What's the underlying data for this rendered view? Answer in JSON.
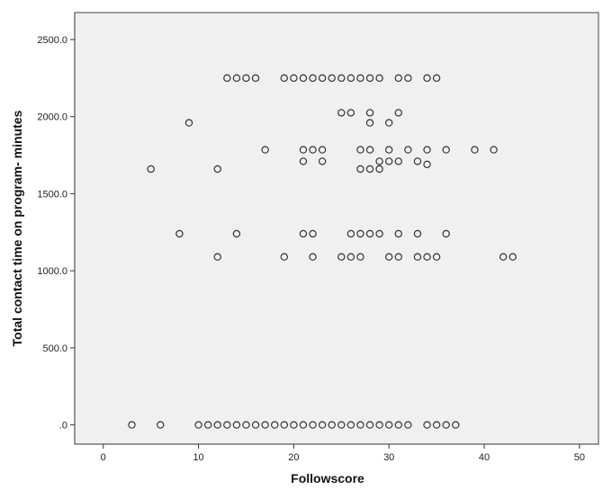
{
  "chart_data": {
    "type": "scatter",
    "title": "",
    "xlabel": "Followscore",
    "ylabel": "Total contact time on program- minutes",
    "xlim": [
      -3,
      52
    ],
    "ylim": [
      -125,
      2675
    ],
    "x_ticks": [
      0,
      10,
      20,
      30,
      40,
      50
    ],
    "x_tick_labels": [
      "0",
      "10",
      "20",
      "30",
      "40",
      "50"
    ],
    "y_ticks": [
      0,
      500,
      1000,
      1500,
      2000,
      2500
    ],
    "y_tick_labels": [
      ".0",
      "500.0",
      "1000.0",
      "1500.0",
      "2000.0",
      "2500.0"
    ],
    "grid": false,
    "plot_background": "#f0f0f0",
    "marker": "hollow-circle",
    "marker_color": "#333333",
    "series": [
      {
        "points": [
          [
            3,
            0
          ],
          [
            6,
            0
          ],
          [
            10,
            0
          ],
          [
            11,
            0
          ],
          [
            12,
            0
          ],
          [
            13,
            0
          ],
          [
            14,
            0
          ],
          [
            15,
            0
          ],
          [
            16,
            0
          ],
          [
            17,
            0
          ],
          [
            18,
            0
          ],
          [
            19,
            0
          ],
          [
            20,
            0
          ],
          [
            21,
            0
          ],
          [
            22,
            0
          ],
          [
            23,
            0
          ],
          [
            24,
            0
          ],
          [
            25,
            0
          ],
          [
            26,
            0
          ],
          [
            27,
            0
          ],
          [
            28,
            0
          ],
          [
            29,
            0
          ],
          [
            30,
            0
          ],
          [
            31,
            0
          ],
          [
            32,
            0
          ],
          [
            34,
            0
          ],
          [
            35,
            0
          ],
          [
            36,
            0
          ],
          [
            37,
            0
          ],
          [
            12,
            1090
          ],
          [
            19,
            1090
          ],
          [
            22,
            1090
          ],
          [
            25,
            1090
          ],
          [
            26,
            1090
          ],
          [
            27,
            1090
          ],
          [
            30,
            1090
          ],
          [
            31,
            1090
          ],
          [
            33,
            1090
          ],
          [
            34,
            1090
          ],
          [
            35,
            1090
          ],
          [
            42,
            1090
          ],
          [
            43,
            1090
          ],
          [
            8,
            1240
          ],
          [
            14,
            1240
          ],
          [
            21,
            1240
          ],
          [
            22,
            1240
          ],
          [
            26,
            1240
          ],
          [
            27,
            1240
          ],
          [
            28,
            1240
          ],
          [
            29,
            1240
          ],
          [
            31,
            1240
          ],
          [
            33,
            1240
          ],
          [
            36,
            1240
          ],
          [
            5,
            1660
          ],
          [
            12,
            1660
          ],
          [
            27,
            1660
          ],
          [
            28,
            1660
          ],
          [
            29,
            1660
          ],
          [
            34,
            1690
          ],
          [
            21,
            1710
          ],
          [
            23,
            1710
          ],
          [
            29,
            1710
          ],
          [
            30,
            1710
          ],
          [
            31,
            1710
          ],
          [
            33,
            1710
          ],
          [
            17,
            1785
          ],
          [
            21,
            1785
          ],
          [
            22,
            1785
          ],
          [
            23,
            1785
          ],
          [
            27,
            1785
          ],
          [
            28,
            1785
          ],
          [
            30,
            1785
          ],
          [
            32,
            1785
          ],
          [
            34,
            1785
          ],
          [
            36,
            1785
          ],
          [
            39,
            1785
          ],
          [
            41,
            1785
          ],
          [
            9,
            1960
          ],
          [
            28,
            1960
          ],
          [
            30,
            1960
          ],
          [
            25,
            2025
          ],
          [
            26,
            2025
          ],
          [
            28,
            2025
          ],
          [
            31,
            2025
          ],
          [
            13,
            2250
          ],
          [
            14,
            2250
          ],
          [
            15,
            2250
          ],
          [
            16,
            2250
          ],
          [
            19,
            2250
          ],
          [
            20,
            2250
          ],
          [
            21,
            2250
          ],
          [
            22,
            2250
          ],
          [
            23,
            2250
          ],
          [
            24,
            2250
          ],
          [
            25,
            2250
          ],
          [
            26,
            2250
          ],
          [
            27,
            2250
          ],
          [
            28,
            2250
          ],
          [
            29,
            2250
          ],
          [
            31,
            2250
          ],
          [
            32,
            2250
          ],
          [
            34,
            2250
          ],
          [
            35,
            2250
          ]
        ]
      }
    ]
  }
}
